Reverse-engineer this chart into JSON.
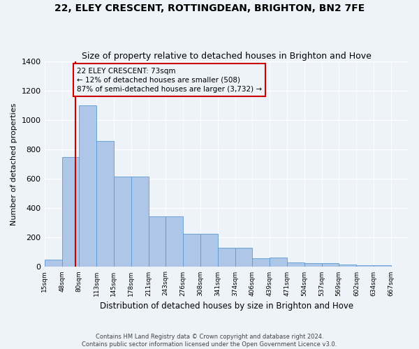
{
  "title": "22, ELEY CRESCENT, ROTTINGDEAN, BRIGHTON, BN2 7FE",
  "subtitle": "Size of property relative to detached houses in Brighton and Hove",
  "xlabel": "Distribution of detached houses by size in Brighton and Hove",
  "ylabel": "Number of detached properties",
  "footer1": "Contains HM Land Registry data © Crown copyright and database right 2024.",
  "footer2": "Contains public sector information licensed under the Open Government Licence v3.0.",
  "annotation_line1": "22 ELEY CRESCENT: 73sqm",
  "annotation_line2": "← 12% of detached houses are smaller (508)",
  "annotation_line3": "87% of semi-detached houses are larger (3,732) →",
  "property_size": 73,
  "bar_left_edges": [
    15,
    48,
    80,
    113,
    145,
    178,
    211,
    243,
    276,
    308,
    341,
    374,
    406,
    439,
    471,
    504,
    537,
    569,
    602,
    634
  ],
  "bar_widths": [
    33,
    32,
    33,
    32,
    33,
    33,
    32,
    33,
    32,
    33,
    33,
    32,
    33,
    32,
    33,
    33,
    32,
    33,
    32,
    33
  ],
  "bar_heights": [
    48,
    750,
    1100,
    860,
    615,
    615,
    345,
    345,
    225,
    225,
    130,
    130,
    60,
    65,
    30,
    25,
    25,
    15,
    12,
    10
  ],
  "bar_color": "#aec6e8",
  "bar_edge_color": "#5b9bd5",
  "redline_color": "#cc0000",
  "annotation_box_color": "#cc0000",
  "ylim": [
    0,
    1400
  ],
  "yticks": [
    0,
    200,
    400,
    600,
    800,
    1000,
    1200,
    1400
  ],
  "bin_labels": [
    "15sqm",
    "48sqm",
    "80sqm",
    "113sqm",
    "145sqm",
    "178sqm",
    "211sqm",
    "243sqm",
    "276sqm",
    "308sqm",
    "341sqm",
    "374sqm",
    "406sqm",
    "439sqm",
    "471sqm",
    "504sqm",
    "537sqm",
    "569sqm",
    "602sqm",
    "634sqm",
    "667sqm"
  ],
  "background_color": "#eef2f9",
  "grid_color": "#ffffff",
  "title_fontsize": 10,
  "subtitle_fontsize": 9,
  "annotation_fontsize": 7.5
}
